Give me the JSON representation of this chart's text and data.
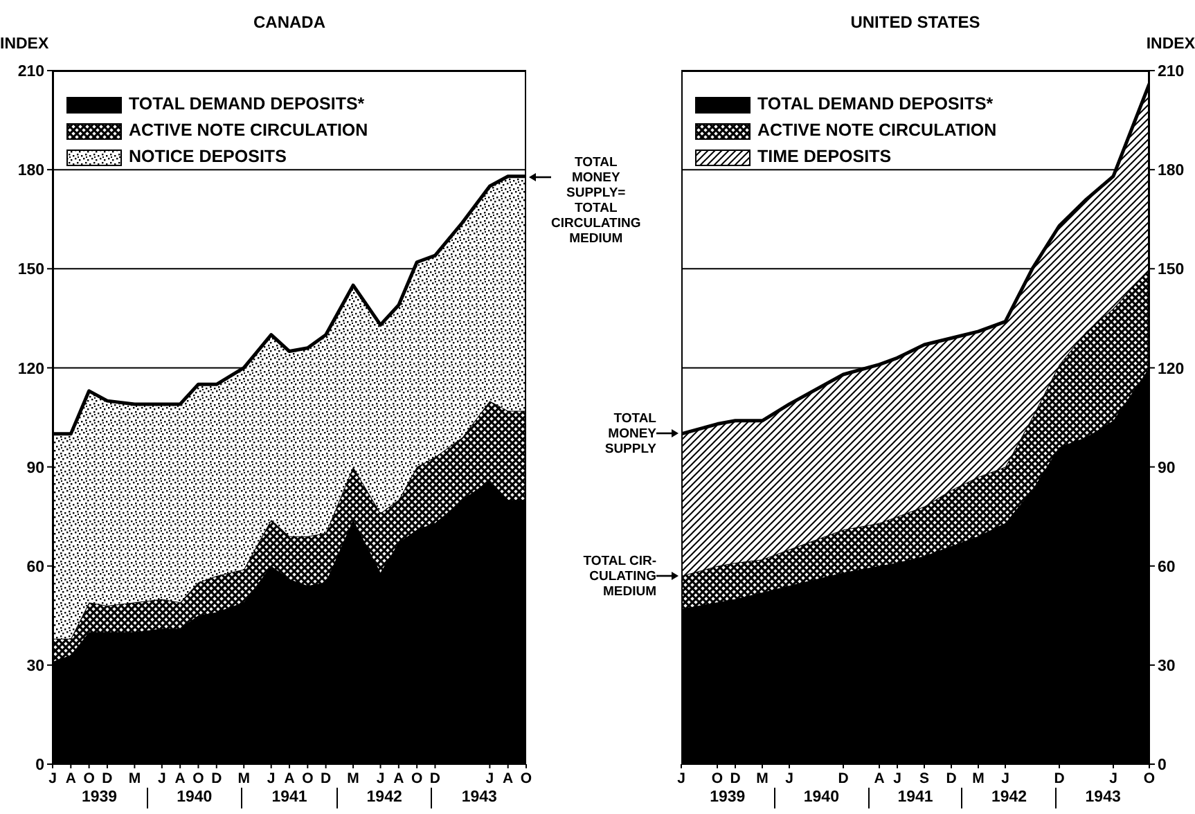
{
  "chart_data": [
    {
      "type": "area",
      "title": "CANADA",
      "ylabel": "INDEX",
      "stacked": true,
      "grid": "y",
      "legend": "top left",
      "categories": [
        "J",
        null,
        "A",
        null,
        "O",
        null,
        "D",
        null,
        null,
        "M",
        null,
        null,
        "J",
        null,
        "A",
        null,
        "O",
        null,
        "D",
        null,
        null,
        "M",
        null,
        null,
        "J",
        null,
        "A",
        null,
        "O",
        null,
        "D",
        null,
        null,
        "M",
        null,
        null,
        "J",
        null,
        "A",
        null,
        "O",
        null,
        "D",
        null,
        null,
        null,
        null,
        null,
        "J",
        null,
        "A",
        null,
        "O"
      ],
      "ylim": [
        0,
        210
      ],
      "yticks": [
        0,
        30,
        60,
        90,
        120,
        150,
        180,
        210
      ],
      "series": [
        {
          "name": "TOTAL DEMAND DEPOSITS*",
          "color": "#000000",
          "values": [
            31,
            null,
            33,
            null,
            40,
            null,
            40,
            null,
            null,
            40,
            null,
            null,
            41,
            null,
            41,
            null,
            45,
            null,
            46,
            null,
            null,
            49,
            null,
            null,
            60,
            null,
            56,
            null,
            54,
            null,
            55,
            null,
            null,
            74,
            null,
            null,
            58,
            null,
            67,
            null,
            71,
            null,
            73,
            null,
            null,
            80,
            null,
            null,
            86,
            null,
            80,
            null,
            80
          ]
        },
        {
          "name": "ACTIVE NOTE CIRCULATION",
          "color": "#000000",
          "values": [
            7,
            null,
            5,
            null,
            9,
            null,
            8,
            null,
            null,
            9,
            null,
            null,
            9,
            null,
            8,
            null,
            10,
            null,
            11,
            null,
            null,
            10,
            null,
            null,
            14,
            null,
            13,
            null,
            15,
            null,
            15,
            null,
            null,
            16,
            null,
            null,
            18,
            null,
            13,
            null,
            19,
            null,
            20,
            null,
            null,
            19,
            null,
            null,
            24,
            null,
            27,
            null,
            27
          ]
        },
        {
          "name": "NOTICE DEPOSITS",
          "color": "#000000",
          "values": [
            62,
            null,
            62,
            null,
            64,
            null,
            62,
            null,
            null,
            60,
            null,
            null,
            59,
            null,
            60,
            null,
            60,
            null,
            58,
            null,
            null,
            61,
            null,
            null,
            56,
            null,
            56,
            null,
            57,
            null,
            60,
            null,
            null,
            55,
            null,
            null,
            57,
            null,
            59,
            null,
            62,
            null,
            61,
            null,
            null,
            65,
            null,
            null,
            65,
            null,
            71,
            null,
            71
          ]
        }
      ],
      "annotations": [
        "TOTAL\nMONEY\nSUPPLY=\nTOTAL\nCIRCULATING\nMEDIUM",
        "1939",
        "1940",
        "1941",
        "1942",
        "1943"
      ]
    },
    {
      "type": "area",
      "title": "UNITED STATES",
      "y2label": "INDEX",
      "stacked": true,
      "grid": "y",
      "legend": "top left",
      "categories": [
        "J",
        null,
        null,
        null,
        "O",
        null,
        "D",
        null,
        null,
        "M",
        null,
        null,
        "J",
        null,
        null,
        null,
        null,
        null,
        "D",
        null,
        null,
        null,
        "A",
        null,
        "J",
        null,
        null,
        "S",
        null,
        null,
        "D",
        null,
        null,
        "M",
        null,
        null,
        "J",
        null,
        null,
        null,
        null,
        null,
        "D",
        null,
        null,
        null,
        null,
        null,
        "J",
        null,
        null,
        null,
        "O"
      ],
      "y2lim": [
        0,
        210
      ],
      "y2ticks": [
        0,
        30,
        60,
        90,
        120,
        150,
        180,
        210
      ],
      "series": [
        {
          "name": "TOTAL DEMAND DEPOSITS*",
          "color": "#000000",
          "axis": "y2",
          "values": [
            47,
            null,
            null,
            null,
            49,
            null,
            50,
            null,
            null,
            52,
            null,
            null,
            54,
            null,
            null,
            null,
            null,
            null,
            58,
            null,
            null,
            null,
            60,
            null,
            61,
            null,
            null,
            63,
            null,
            null,
            66,
            null,
            null,
            69,
            null,
            null,
            73,
            null,
            null,
            83,
            null,
            null,
            96,
            null,
            null,
            99,
            null,
            null,
            104,
            null,
            null,
            null,
            120
          ]
        },
        {
          "name": "ACTIVE NOTE CIRCULATION",
          "color": "#000000",
          "axis": "y2",
          "values": [
            10,
            null,
            null,
            null,
            11,
            null,
            11,
            null,
            null,
            10,
            null,
            null,
            11,
            null,
            null,
            null,
            null,
            null,
            13,
            null,
            null,
            null,
            13,
            null,
            14,
            null,
            null,
            15,
            null,
            null,
            17,
            null,
            null,
            18,
            null,
            null,
            17,
            null,
            null,
            22,
            null,
            null,
            25,
            null,
            null,
            32,
            null,
            null,
            34,
            null,
            null,
            null,
            30
          ]
        },
        {
          "name": "TIME DEPOSITS",
          "color": "#000000",
          "axis": "y2",
          "values": [
            43,
            null,
            null,
            null,
            43,
            null,
            43,
            null,
            null,
            42,
            null,
            null,
            44,
            null,
            null,
            null,
            null,
            null,
            47,
            null,
            null,
            null,
            48,
            null,
            48,
            null,
            null,
            49,
            null,
            null,
            46,
            null,
            null,
            44,
            null,
            null,
            44,
            null,
            null,
            45,
            null,
            null,
            42,
            null,
            null,
            40,
            null,
            null,
            40,
            null,
            null,
            null,
            56
          ]
        }
      ],
      "annotations": [
        "TOTAL\nMONEY\nSUPPLY",
        "TOTAL CIR-\nCULATING\nMEDIUM",
        "1939",
        "1940",
        "1941",
        "1942",
        "1943"
      ]
    }
  ]
}
